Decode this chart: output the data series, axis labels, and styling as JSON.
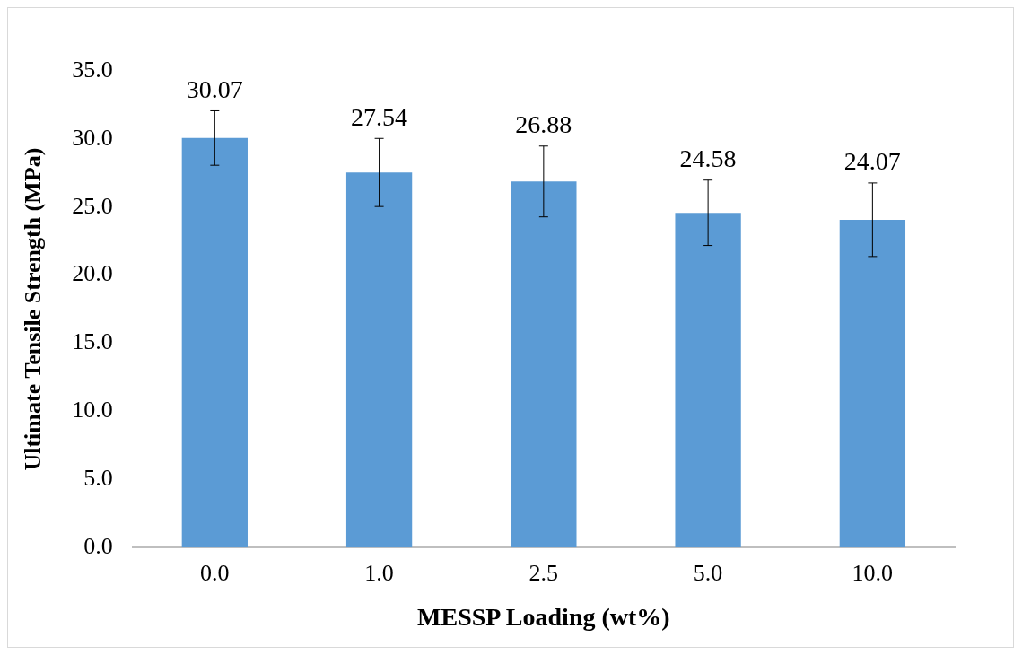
{
  "chart_data": {
    "type": "bar",
    "xlabel": "MESSP Loading (wt%)",
    "ylabel": "Ultimate Tensile Strength (MPa)",
    "categories": [
      "0.0",
      "1.0",
      "2.5",
      "5.0",
      "10.0"
    ],
    "values": [
      30.07,
      27.54,
      26.88,
      24.58,
      24.07
    ],
    "color": "#5b9bd5",
    "errors": [
      2.0,
      2.5,
      2.6,
      2.4,
      2.7
    ],
    "data_labels": true,
    "ylim": [
      0,
      35
    ],
    "yticks": [
      {
        "value": 0,
        "label": "0.0"
      },
      {
        "value": 5,
        "label": "5.0"
      },
      {
        "value": 10,
        "label": "10.0"
      },
      {
        "value": 15,
        "label": "15.0"
      },
      {
        "value": 20,
        "label": "20.0"
      },
      {
        "value": 25,
        "label": "25.0"
      },
      {
        "value": 30,
        "label": "30.0"
      },
      {
        "value": 35,
        "label": "35.0"
      }
    ],
    "grid": false,
    "legend": false
  }
}
